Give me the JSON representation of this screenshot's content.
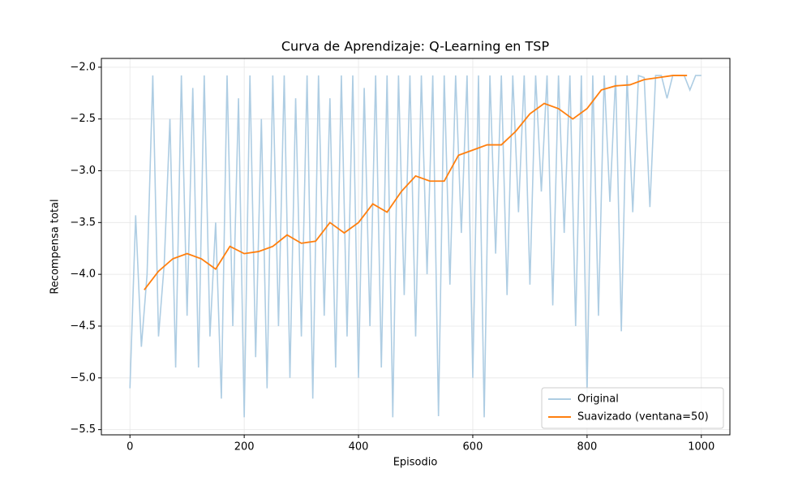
{
  "chart_data": {
    "type": "line",
    "title": "Curva de Aprendizaje: Q-Learning en TSP",
    "xlabel": "Episodio",
    "ylabel": "Recompensa total",
    "xlim": [
      -50,
      1050
    ],
    "ylim": [
      -5.55,
      -1.915
    ],
    "xticks": [
      0,
      200,
      400,
      600,
      800,
      1000
    ],
    "yticks": [
      {
        "value": -2.0,
        "label": "−2.0"
      },
      {
        "value": -2.5,
        "label": "−2.5"
      },
      {
        "value": -3.0,
        "label": "−3.0"
      },
      {
        "value": -3.5,
        "label": "−3.5"
      },
      {
        "value": -4.0,
        "label": "−4.0"
      },
      {
        "value": -4.5,
        "label": "−4.5"
      },
      {
        "value": -5.0,
        "label": "−5.0"
      },
      {
        "value": -5.5,
        "label": "−5.5"
      }
    ],
    "grid": true,
    "legend": "lower right",
    "series": [
      {
        "name": "Original",
        "color": "#aecde3",
        "x": [
          0,
          10,
          20,
          30,
          40,
          50,
          60,
          70,
          80,
          90,
          100,
          110,
          120,
          130,
          140,
          150,
          160,
          170,
          180,
          190,
          200,
          210,
          220,
          230,
          240,
          250,
          260,
          270,
          280,
          290,
          300,
          310,
          320,
          330,
          340,
          350,
          360,
          370,
          380,
          390,
          400,
          410,
          420,
          430,
          440,
          450,
          460,
          470,
          480,
          490,
          500,
          510,
          520,
          530,
          540,
          550,
          560,
          570,
          580,
          590,
          600,
          610,
          620,
          630,
          640,
          650,
          660,
          670,
          680,
          690,
          700,
          710,
          720,
          730,
          740,
          750,
          760,
          770,
          780,
          790,
          800,
          810,
          820,
          830,
          840,
          850,
          860,
          870,
          880,
          890,
          900,
          910,
          920,
          930,
          940,
          950,
          960,
          970,
          980,
          990,
          1000
        ],
        "values": [
          -5.1,
          -3.43,
          -4.7,
          -4.0,
          -2.08,
          -4.6,
          -3.9,
          -2.5,
          -4.9,
          -2.08,
          -4.4,
          -2.2,
          -4.9,
          -2.08,
          -4.6,
          -3.5,
          -5.2,
          -2.08,
          -4.5,
          -2.3,
          -5.38,
          -2.08,
          -4.8,
          -2.5,
          -5.1,
          -2.08,
          -4.5,
          -2.08,
          -5.0,
          -2.3,
          -4.6,
          -2.08,
          -5.2,
          -2.08,
          -4.4,
          -2.3,
          -4.9,
          -2.08,
          -4.6,
          -2.08,
          -5.0,
          -2.2,
          -4.5,
          -2.08,
          -4.9,
          -2.08,
          -5.38,
          -2.08,
          -4.2,
          -2.08,
          -4.6,
          -2.08,
          -4.0,
          -2.08,
          -5.37,
          -2.08,
          -4.1,
          -2.08,
          -3.6,
          -2.08,
          -5.0,
          -2.08,
          -5.38,
          -2.08,
          -3.8,
          -2.08,
          -4.2,
          -2.08,
          -3.4,
          -2.08,
          -4.1,
          -2.08,
          -3.2,
          -2.08,
          -4.3,
          -2.08,
          -3.6,
          -2.08,
          -4.5,
          -2.08,
          -5.15,
          -2.08,
          -4.4,
          -2.08,
          -3.3,
          -2.08,
          -4.55,
          -2.08,
          -3.4,
          -2.08,
          -2.1,
          -3.35,
          -2.08,
          -2.08,
          -2.3,
          -2.08,
          -2.08,
          -2.08,
          -2.22,
          -2.08,
          -2.08
        ]
      },
      {
        "name": "Suavizado (ventana=50)",
        "color": "#ff7f0e",
        "x": [
          25,
          50,
          75,
          100,
          125,
          150,
          175,
          200,
          225,
          250,
          275,
          300,
          325,
          350,
          375,
          400,
          425,
          450,
          475,
          500,
          525,
          550,
          575,
          600,
          625,
          650,
          675,
          700,
          725,
          750,
          775,
          800,
          825,
          850,
          875,
          900,
          925,
          950,
          975
        ],
        "values": [
          -4.15,
          -3.97,
          -3.85,
          -3.8,
          -3.85,
          -3.95,
          -3.73,
          -3.8,
          -3.78,
          -3.73,
          -3.62,
          -3.7,
          -3.68,
          -3.5,
          -3.6,
          -3.5,
          -3.32,
          -3.4,
          -3.2,
          -3.05,
          -3.1,
          -3.1,
          -2.85,
          -2.8,
          -2.75,
          -2.75,
          -2.62,
          -2.45,
          -2.35,
          -2.4,
          -2.5,
          -2.4,
          -2.22,
          -2.18,
          -2.17,
          -2.12,
          -2.1,
          -2.08,
          -2.08
        ]
      }
    ]
  }
}
